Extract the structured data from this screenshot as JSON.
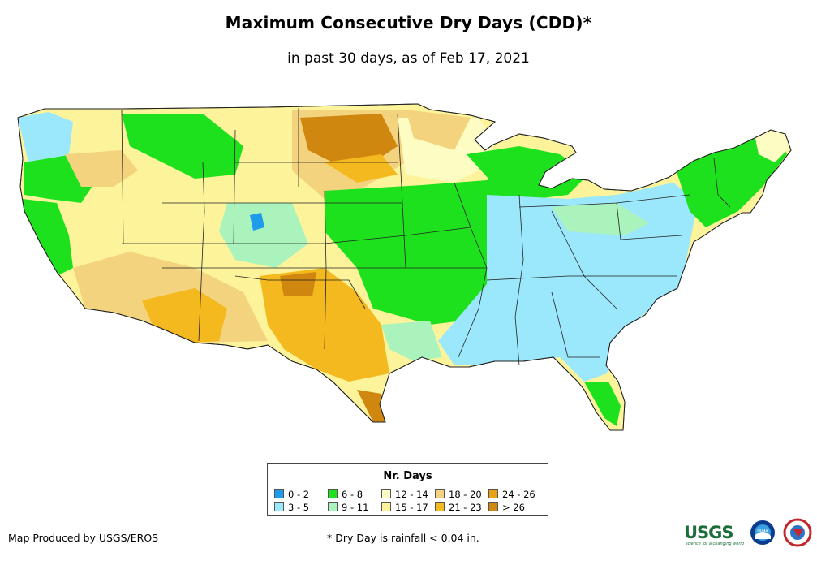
{
  "title": "Maximum Consecutive Dry Days (CDD)*",
  "subtitle": "in past 30 days, as of Feb 17, 2021",
  "legend": {
    "title": "Nr. Days",
    "classes": [
      {
        "label": "0 - 2",
        "color": "#1e9bea"
      },
      {
        "label": "3 - 5",
        "color": "#9be7fb"
      },
      {
        "label": "6 - 8",
        "color": "#1ee11e"
      },
      {
        "label": "9 - 11",
        "color": "#aaf3bc"
      },
      {
        "label": "12 - 14",
        "color": "#fcfcc3"
      },
      {
        "label": "15 - 17",
        "color": "#fcf39b"
      },
      {
        "label": "18 - 20",
        "color": "#f4d37e"
      },
      {
        "label": "21 - 23",
        "color": "#f4b91e"
      },
      {
        "label": "24 - 26",
        "color": "#e9a111"
      },
      {
        "label": "> 26",
        "color": "#cf8710"
      }
    ]
  },
  "credit": "Map Produced by USGS/EROS",
  "footnote": "* Dry Day is rainfall < 0.04 in.",
  "logos": {
    "usgs_text": "USGS",
    "usgs_tagline": "science for a changing world",
    "noaa_text": "noaa"
  }
}
